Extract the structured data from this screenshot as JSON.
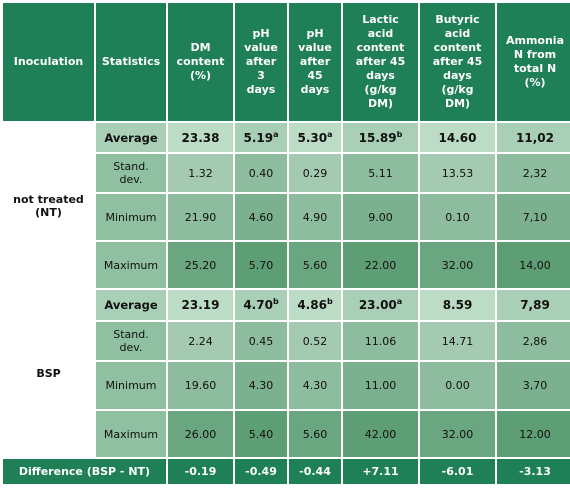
{
  "headers": {
    "inoculation": "Inoculation",
    "statistics": "Statistics",
    "dm": [
      "DM",
      "content",
      "(%)"
    ],
    "ph3": [
      "pH",
      "value",
      "after",
      "3",
      "days"
    ],
    "ph45": [
      "pH",
      "value",
      "after",
      "45",
      "days"
    ],
    "lactic": [
      "Lactic",
      "acid",
      "content",
      "after 45",
      "days",
      "(g/kg",
      "DM)"
    ],
    "butyric": [
      "Butyric",
      "acid",
      "content",
      "after 45",
      "days",
      "(g/kg",
      "DM)"
    ],
    "ammonia": [
      "Ammonia",
      "N from",
      "total N",
      "(%)"
    ]
  },
  "groups": [
    {
      "name": [
        "not treated",
        "(NT)"
      ],
      "rows": [
        {
          "stat": "Average",
          "dm": "23.38",
          "ph3": "5.19",
          "ph3_sup": "a",
          "ph45": "5.30",
          "ph45_sup": "a",
          "lactic": "15.89",
          "lactic_sup": "b",
          "butyric": "14.60",
          "ammonia": "11,02"
        },
        {
          "stat": "Stand. dev.",
          "dm": "1.32",
          "ph3": "0.40",
          "ph45": "0.29",
          "lactic": "5.11",
          "butyric": "13.53",
          "ammonia": "2,32"
        },
        {
          "stat": "Minimum",
          "dm": "21.90",
          "ph3": "4.60",
          "ph45": "4.90",
          "lactic": "9.00",
          "butyric": "0.10",
          "ammonia": "7,10"
        },
        {
          "stat": "Maximum",
          "dm": "25.20",
          "ph3": "5.70",
          "ph45": "5.60",
          "lactic": "22.00",
          "butyric": "32.00",
          "ammonia": "14,00"
        }
      ]
    },
    {
      "name": [
        "BSP"
      ],
      "rows": [
        {
          "stat": "Average",
          "dm": "23.19",
          "ph3": "4.70",
          "ph3_sup": "b",
          "ph45": "4.86",
          "ph45_sup": "b",
          "lactic": "23.00",
          "lactic_sup": "a",
          "butyric": "8.59",
          "ammonia": "7,89"
        },
        {
          "stat": "Stand. dev.",
          "dm": "2.24",
          "ph3": "0.45",
          "ph45": "0.52",
          "lactic": "11.06",
          "butyric": "14.71",
          "ammonia": "2,86"
        },
        {
          "stat": "Minimum",
          "dm": "19.60",
          "ph3": "4.30",
          "ph45": "4.30",
          "lactic": "11.00",
          "butyric": "0.00",
          "ammonia": "3,70"
        },
        {
          "stat": "Maximum",
          "dm": "26.00",
          "ph3": "5.40",
          "ph45": "5.60",
          "lactic": "42.00",
          "butyric": "32.00",
          "ammonia": "12.00"
        }
      ]
    }
  ],
  "difference": {
    "label": "Difference (BSP - NT)",
    "dm": "-0.19",
    "ph3": "-0.49",
    "ph45": "-0.44",
    "lactic": "+7.11",
    "butyric": "-6.01",
    "ammonia": "-3.13"
  },
  "colors": {
    "header": "#1f8058",
    "label": "#a9cfb7",
    "cell_light": "#a4cbb1",
    "cell_dark": "#5e9e75"
  }
}
